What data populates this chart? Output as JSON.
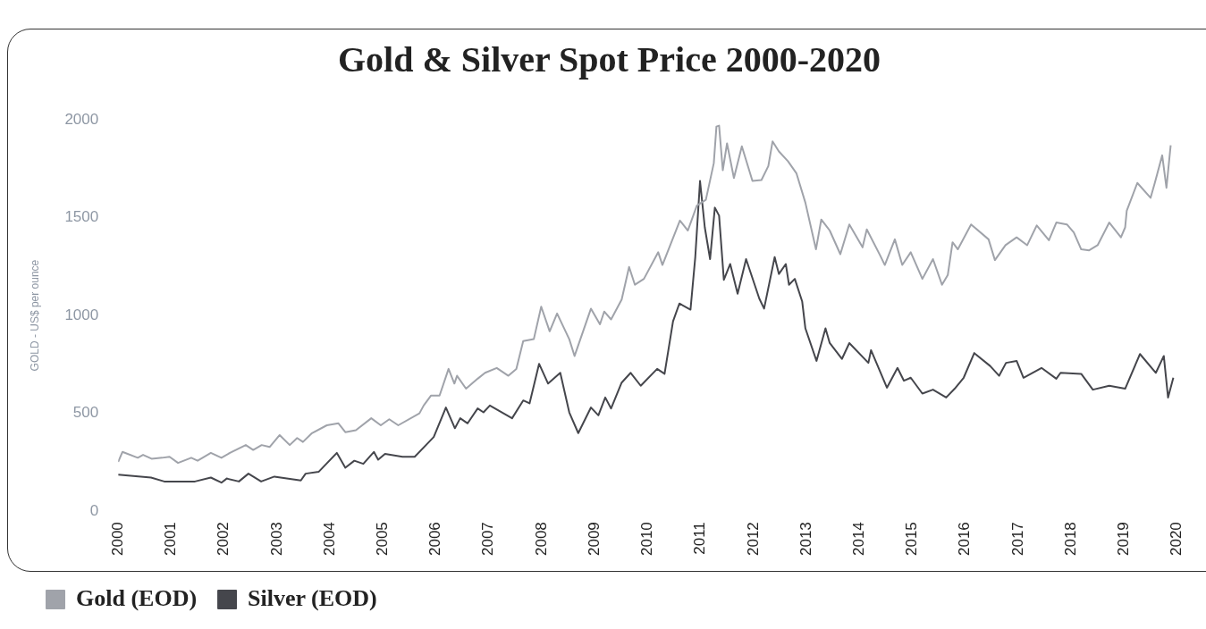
{
  "chart_data": {
    "type": "line",
    "title": "Gold & Silver Spot Price 2000-2020",
    "ylabel": "GOLD - US$ per ounce",
    "xlim": [
      2000,
      2020
    ],
    "xticks": [
      2000,
      2001,
      2002,
      2003,
      2004,
      2005,
      2006,
      2007,
      2008,
      2009,
      2010,
      2011,
      2012,
      2013,
      2014,
      2015,
      2016,
      2017,
      2018,
      2019,
      2020
    ],
    "ylim": [
      0,
      2000
    ],
    "yticks": [
      0,
      500,
      1000,
      1500,
      2000
    ],
    "legend": "bottom left",
    "series": [
      {
        "name": "Gold (EOD)",
        "color": "#a0a3aa",
        "x": [
          2000.0,
          2000.08,
          2000.37,
          2000.47,
          2000.63,
          2000.83,
          2000.97,
          2001.13,
          2001.38,
          2001.5,
          2001.75,
          2001.95,
          2002.11,
          2002.41,
          2002.55,
          2002.71,
          2002.86,
          2003.05,
          2003.24,
          2003.38,
          2003.49,
          2003.66,
          2003.94,
          2004.16,
          2004.29,
          2004.49,
          2004.78,
          2004.96,
          2005.12,
          2005.29,
          2005.69,
          2005.77,
          2005.91,
          2006.07,
          2006.24,
          2006.35,
          2006.4,
          2006.57,
          2006.79,
          2006.93,
          2007.15,
          2007.37,
          2007.52,
          2007.65,
          2007.85,
          2007.99,
          2008.15,
          2008.29,
          2008.52,
          2008.62,
          2008.93,
          2009.1,
          2009.18,
          2009.31,
          2009.51,
          2009.65,
          2009.76,
          2009.93,
          2010.2,
          2010.28,
          2010.61,
          2010.76,
          2010.93,
          2011.1,
          2011.25,
          2011.3,
          2011.35,
          2011.42,
          2011.5,
          2011.63,
          2011.78,
          2011.98,
          2012.15,
          2012.28,
          2012.36,
          2012.48,
          2012.65,
          2012.81,
          2012.98,
          2013.18,
          2013.28,
          2013.44,
          2013.64,
          2013.81,
          2014.06,
          2014.14,
          2014.39,
          2014.48,
          2014.67,
          2014.81,
          2014.97,
          2015.19,
          2015.39,
          2015.56,
          2015.67,
          2015.76,
          2015.86,
          2016.11,
          2016.44,
          2016.56,
          2016.76,
          2016.97,
          2017.17,
          2017.35,
          2017.58,
          2017.72,
          2017.92,
          2018.05,
          2018.19,
          2018.34,
          2018.5,
          2018.72,
          2018.94,
          2019.02,
          2019.05,
          2019.25,
          2019.5,
          2019.58,
          2019.72,
          2019.8,
          2019.88
        ],
        "values": [
          252,
          303,
          273,
          288,
          268,
          273,
          278,
          247,
          273,
          258,
          298,
          273,
          298,
          338,
          313,
          338,
          328,
          389,
          338,
          374,
          354,
          399,
          439,
          449,
          404,
          414,
          475,
          439,
          470,
          439,
          500,
          540,
          591,
          591,
          727,
          652,
          692,
          626,
          677,
          707,
          732,
          692,
          727,
          869,
          879,
          1045,
          919,
          1010,
          879,
          793,
          1035,
          955,
          1020,
          980,
          1081,
          1248,
          1157,
          1187,
          1323,
          1258,
          1485,
          1434,
          1561,
          1591,
          1778,
          1965,
          1970,
          1742,
          1879,
          1702,
          1864,
          1687,
          1692,
          1763,
          1889,
          1838,
          1788,
          1727,
          1576,
          1338,
          1490,
          1434,
          1313,
          1465,
          1348,
          1440,
          1308,
          1258,
          1389,
          1258,
          1323,
          1187,
          1288,
          1157,
          1207,
          1374,
          1338,
          1465,
          1389,
          1283,
          1359,
          1399,
          1359,
          1460,
          1384,
          1475,
          1465,
          1424,
          1338,
          1333,
          1359,
          1475,
          1399,
          1450,
          1535,
          1677,
          1601,
          1677,
          1818,
          1652,
          1869
        ]
      },
      {
        "name": "Silver (EOD)",
        "color": "#45464c",
        "x": [
          2000.0,
          2000.62,
          2000.87,
          2001.45,
          2001.75,
          2001.95,
          2002.05,
          2002.28,
          2002.46,
          2002.7,
          2002.95,
          2003.45,
          2003.54,
          2003.79,
          2004.13,
          2004.29,
          2004.46,
          2004.63,
          2004.83,
          2004.91,
          2005.04,
          2005.37,
          2005.6,
          2005.96,
          2006.19,
          2006.36,
          2006.46,
          2006.6,
          2006.79,
          2006.9,
          2007.02,
          2007.44,
          2007.65,
          2007.77,
          2007.95,
          2008.12,
          2008.35,
          2008.52,
          2008.69,
          2008.93,
          2009.07,
          2009.2,
          2009.31,
          2009.51,
          2009.68,
          2009.87,
          2010.18,
          2010.32,
          2010.48,
          2010.6,
          2010.81,
          2010.9,
          2010.99,
          2011.08,
          2011.18,
          2011.27,
          2011.35,
          2011.44,
          2011.56,
          2011.7,
          2011.86,
          2012.11,
          2012.2,
          2012.4,
          2012.48,
          2012.61,
          2012.67,
          2012.78,
          2012.92,
          2012.98,
          2013.19,
          2013.36,
          2013.44,
          2013.67,
          2013.81,
          2014.17,
          2014.22,
          2014.52,
          2014.72,
          2014.84,
          2014.97,
          2015.19,
          2015.39,
          2015.64,
          2015.8,
          2015.97,
          2016.17,
          2016.47,
          2016.64,
          2016.77,
          2016.97,
          2017.1,
          2017.44,
          2017.72,
          2017.8,
          2018.19,
          2018.41,
          2018.72,
          2019.02,
          2019.3,
          2019.6,
          2019.75,
          2019.83,
          2019.93
        ],
        "values": [
          187,
          172,
          152,
          152,
          172,
          146,
          167,
          152,
          192,
          152,
          177,
          157,
          192,
          202,
          298,
          222,
          258,
          242,
          303,
          263,
          293,
          278,
          278,
          379,
          530,
          424,
          475,
          449,
          525,
          505,
          540,
          475,
          566,
          551,
          753,
          652,
          707,
          505,
          399,
          530,
          490,
          581,
          525,
          657,
          707,
          641,
          727,
          702,
          970,
          1061,
          1030,
          1298,
          1687,
          1450,
          1288,
          1551,
          1510,
          1182,
          1263,
          1111,
          1288,
          1086,
          1035,
          1298,
          1212,
          1263,
          1157,
          1187,
          1071,
          934,
          768,
          934,
          859,
          778,
          859,
          758,
          823,
          631,
          732,
          667,
          682,
          601,
          621,
          581,
          626,
          682,
          808,
          742,
          692,
          758,
          768,
          682,
          732,
          677,
          707,
          702,
          621,
          641,
          626,
          803,
          707,
          793,
          581,
          682
        ]
      }
    ]
  }
}
